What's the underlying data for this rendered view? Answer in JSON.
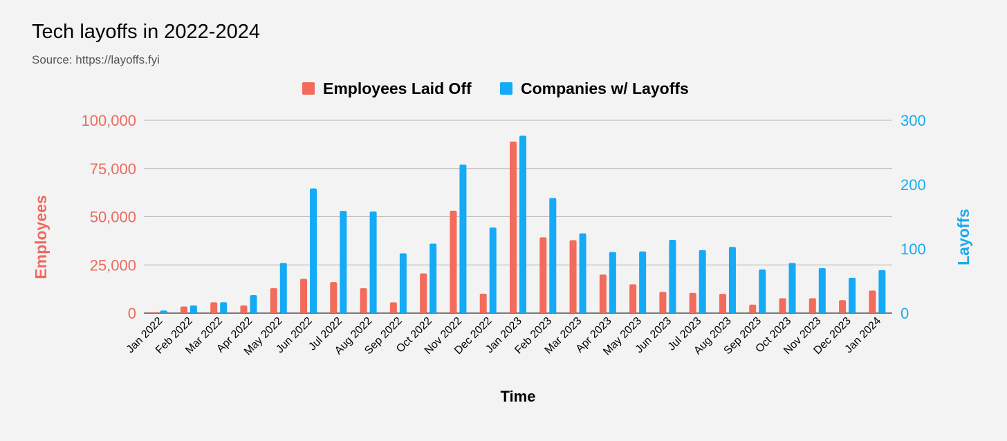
{
  "chart_data": {
    "type": "bar",
    "title": "Tech layoffs in 2022-2024",
    "subtitle": "Source: https://layoffs.fyi",
    "xlabel": "Time",
    "ylabel_left": "Employees",
    "ylabel_right": "Layoffs",
    "legend_position": "top-center",
    "grid": true,
    "categories": [
      "Jan 2022",
      "Feb 2022",
      "Mar 2022",
      "Apr 2022",
      "May 2022",
      "Jun 2022",
      "Jul 2022",
      "Aug 2022",
      "Sep 2022",
      "Oct 2022",
      "Nov 2022",
      "Dec 2022",
      "Jan 2023",
      "Feb 2023",
      "Mar 2023",
      "Apr 2023",
      "May 2023",
      "Jun 2023",
      "Jul 2023",
      "Aug 2023",
      "Sep 2023",
      "Oct 2023",
      "Nov 2023",
      "Dec 2023",
      "Jan 2024"
    ],
    "y_left": {
      "min": 0,
      "max": 100000,
      "ticks": [
        0,
        25000,
        50000,
        75000,
        100000
      ],
      "tick_labels": [
        "0",
        "25,000",
        "50,000",
        "75,000",
        "100,000"
      ]
    },
    "y_right": {
      "min": 0,
      "max": 300,
      "ticks": [
        0,
        100,
        200,
        300
      ],
      "tick_labels": [
        "0",
        "100",
        "200",
        "300"
      ]
    },
    "series": [
      {
        "name": "Employees Laid Off",
        "axis": "left",
        "color": "#f26b5b",
        "values": [
          500,
          3400,
          5600,
          4000,
          12900,
          17800,
          16100,
          12900,
          5600,
          20600,
          53100,
          10100,
          89000,
          39300,
          37800,
          20000,
          14900,
          11000,
          10500,
          10000,
          4400,
          7700,
          7700,
          6700,
          11700
        ]
      },
      {
        "name": "Companies w/ Layoffs",
        "axis": "right",
        "color": "#14aaf5",
        "values": [
          4,
          12,
          17,
          28,
          78,
          194,
          159,
          158,
          93,
          108,
          231,
          133,
          276,
          179,
          124,
          95,
          96,
          114,
          98,
          103,
          68,
          78,
          70,
          55,
          67
        ]
      }
    ]
  }
}
